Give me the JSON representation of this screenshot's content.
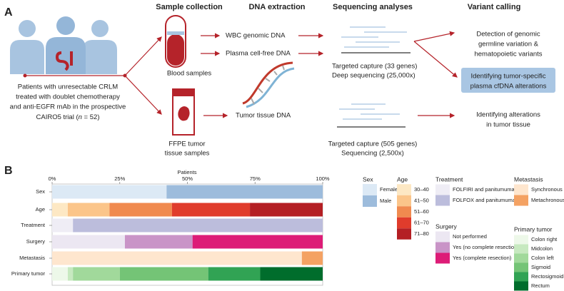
{
  "panel_a": {
    "label": "A",
    "headers": [
      "Sample collection",
      "DNA extraction",
      "Sequencing analyses",
      "Variant calling"
    ],
    "patients": [
      "Patients with unresectable CRLM",
      "treated with doublet chemotherapy",
      "and anti-EGFR mAb in the prospective",
      "CAIRO5 trial (",
      "n",
      " = 52)"
    ],
    "blood": "Blood samples",
    "ffpe": [
      "FFPE tumor",
      "tissue samples"
    ],
    "wbc": "WBC genomic DNA",
    "plasma": "Plasma cell-free DNA",
    "tissue": "Tumor tissue DNA",
    "seq_plasma": [
      "Targeted capture (33 genes)",
      "Deep sequencing (25,000x)"
    ],
    "seq_tissue": [
      "Targeted capture (505 genes)",
      "Sequencing (2,500x)"
    ],
    "calls": [
      "Detection of genomic",
      "germline variation &",
      "hematopoietic variants"
    ],
    "highlight": [
      "Identifying tumor-specific",
      "plasma cfDNA alterations"
    ],
    "tissue_call": [
      "Identifying alterations",
      "in tumor tissue"
    ]
  },
  "chart_data": {
    "type": "stacked-bar-horizontal",
    "label": "B",
    "x_label": "Patients",
    "xlim": [
      0,
      100
    ],
    "xticks": [
      {
        "value": 0,
        "label": "0%"
      },
      {
        "value": 25,
        "label": "25%"
      },
      {
        "value": 50,
        "label": "50%"
      },
      {
        "value": 75,
        "label": "75%"
      },
      {
        "value": 100,
        "label": "100%"
      }
    ],
    "rows": [
      {
        "category": "Sex",
        "legend_title": "Sex",
        "segments": [
          {
            "name": "Female",
            "color": "#dce9f5",
            "value": 42.3
          },
          {
            "name": "Male",
            "color": "#9dbcdc",
            "value": 57.7
          }
        ]
      },
      {
        "category": "Age",
        "legend_title": "Age",
        "segments": [
          {
            "name": "30–40",
            "color": "#fde8c4",
            "value": 5.8
          },
          {
            "name": "41–50",
            "color": "#fbc58a",
            "value": 15.4
          },
          {
            "name": "51–60",
            "color": "#f08a4f",
            "value": 23.1
          },
          {
            "name": "61–70",
            "color": "#e03c2c",
            "value": 28.8
          },
          {
            "name": "71–80",
            "color": "#b41f24",
            "value": 26.9
          }
        ]
      },
      {
        "category": "Treatment",
        "legend_title": "Treatment",
        "segments": [
          {
            "name": "FOLFIRI and panitumumab",
            "color": "#efedf5",
            "value": 7.7
          },
          {
            "name": "FOLFOX and panitumumab",
            "color": "#bcbddc",
            "value": 92.3
          }
        ]
      },
      {
        "category": "Surgery",
        "legend_title": "Surgery",
        "segments": [
          {
            "name": "Not performed",
            "color": "#ece7f2",
            "value": 26.9
          },
          {
            "name": "Yes (no complete resection)",
            "color": "#c994c7",
            "value": 25.0
          },
          {
            "name": "Yes (complete resection)",
            "color": "#dd1c77",
            "value": 48.1
          }
        ]
      },
      {
        "category": "Metastasis",
        "legend_title": "Metastasis",
        "segments": [
          {
            "name": "Synchronous",
            "color": "#fee6ce",
            "value": 92.3
          },
          {
            "name": "Metachronous",
            "color": "#f4a263",
            "value": 7.7
          }
        ]
      },
      {
        "category": "Primary tumor",
        "legend_title": "Primary tumor",
        "segments": [
          {
            "name": "Colon right",
            "color": "#edf8e9",
            "value": 5.8
          },
          {
            "name": "Midcolon",
            "color": "#c7e9c0",
            "value": 1.9
          },
          {
            "name": "Colon left",
            "color": "#a1d99b",
            "value": 17.3
          },
          {
            "name": "Sigmoid",
            "color": "#74c476",
            "value": 32.7
          },
          {
            "name": "Rectosigmoid",
            "color": "#31a354",
            "value": 19.2
          },
          {
            "name": "Rectum",
            "color": "#006d2c",
            "value": 23.1
          }
        ]
      }
    ]
  }
}
